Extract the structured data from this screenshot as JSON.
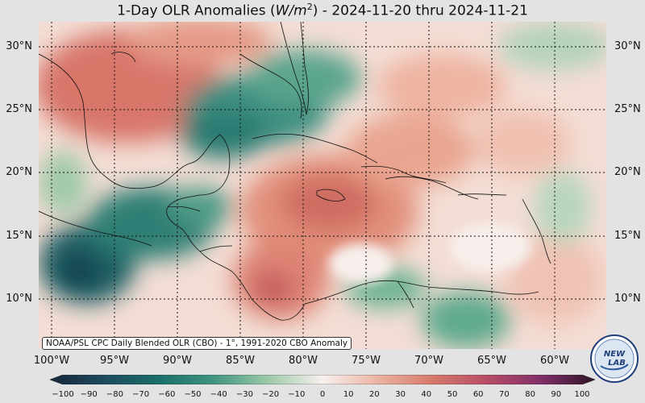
{
  "title": {
    "prefix": "1-Day OLR Anomalies (",
    "unit_base": "W/m",
    "unit_exp": "2",
    "suffix": ") - 2024-11-20 thru 2024-11-21"
  },
  "lat_labels": [
    "30°N",
    "25°N",
    "20°N",
    "15°N",
    "10°N"
  ],
  "lon_labels": [
    "100°W",
    "95°W",
    "90°W",
    "85°W",
    "80°W",
    "75°W",
    "70°W",
    "65°W",
    "60°W"
  ],
  "credit": "NOAA/PSL CPC Daily Blended OLR (CBO) - 1°, 1991-2020 CBO Anomaly",
  "logo": {
    "line1": "NEW",
    "line2": "LAB"
  },
  "colorbar": {
    "ticks": [
      "−100",
      "−90",
      "−80",
      "−70",
      "−60",
      "−50",
      "−40",
      "−30",
      "−20",
      "−10",
      "0",
      "10",
      "20",
      "30",
      "40",
      "50",
      "60",
      "70",
      "80",
      "90",
      "100"
    ],
    "colors": {
      "very_negative": "#1b2a3d",
      "negative_mid": "#1a6f69",
      "negative_light": "#7cb796",
      "neutral": "#f7f0ee",
      "positive_light": "#e9a894",
      "positive_mid": "#c9605a",
      "positive_high": "#9c3a6a",
      "very_positive": "#3a1530"
    }
  },
  "map_colors": {
    "grid": "#111111",
    "coast": "#111111"
  }
}
